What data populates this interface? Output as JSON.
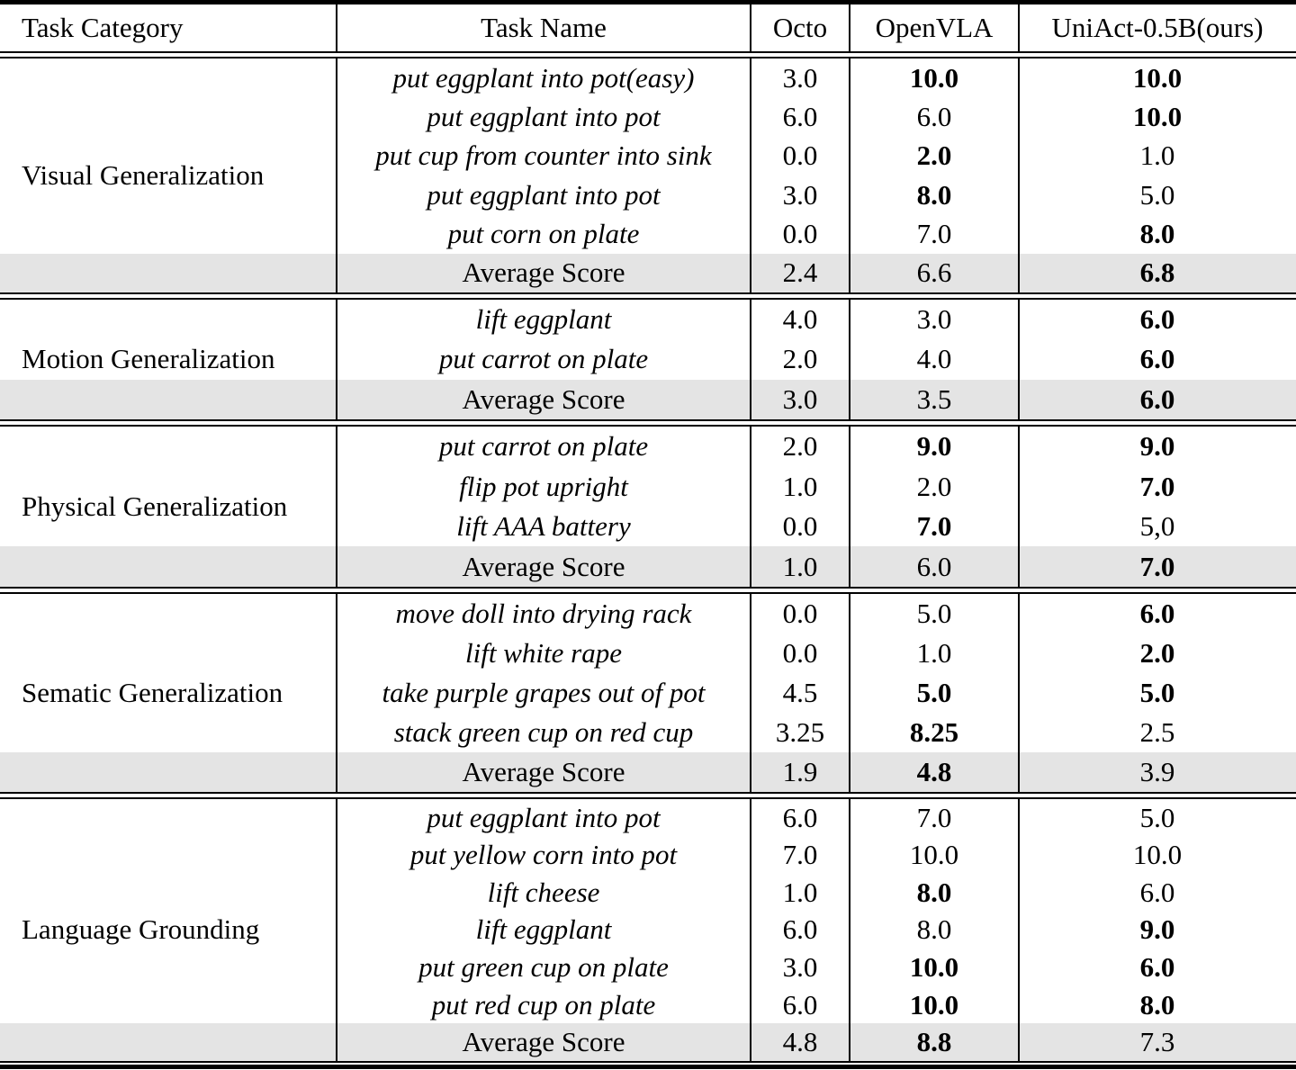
{
  "header": {
    "task_category": "Task Category",
    "task_name": "Task Name",
    "octo": "Octo",
    "openvla": "OpenVLA",
    "uniact": "UniAct-0.5B(ours)"
  },
  "average_label": "Average Score",
  "colors": {
    "average_row_bg": "#e4e4e4",
    "rule": "#000000",
    "text": "#000000",
    "background": "#ffffff"
  },
  "sections": [
    {
      "category": "Visual Generalization",
      "rows": [
        {
          "task": "put eggplant into pot(easy)",
          "octo": "3.0",
          "openvla": "10.0",
          "uniact": "10.0",
          "bold": [
            "openvla",
            "uniact"
          ]
        },
        {
          "task": "put eggplant into pot",
          "octo": "6.0",
          "openvla": "6.0",
          "uniact": "10.0",
          "bold": [
            "uniact"
          ]
        },
        {
          "task": "put cup from counter into sink",
          "octo": "0.0",
          "openvla": "2.0",
          "uniact": "1.0",
          "bold": [
            "openvla"
          ]
        },
        {
          "task": "put eggplant into pot",
          "octo": "3.0",
          "openvla": "8.0",
          "uniact": "5.0",
          "bold": [
            "openvla"
          ]
        },
        {
          "task": "put corn on plate",
          "octo": "0.0",
          "openvla": "7.0",
          "uniact": "8.0",
          "bold": [
            "uniact"
          ]
        }
      ],
      "average": {
        "octo": "2.4",
        "openvla": "6.6",
        "uniact": "6.8",
        "bold": [
          "uniact"
        ]
      }
    },
    {
      "category": "Motion Generalization",
      "rows": [
        {
          "task": "lift eggplant",
          "octo": "4.0",
          "openvla": "3.0",
          "uniact": "6.0",
          "bold": [
            "uniact"
          ]
        },
        {
          "task": "put carrot on plate",
          "octo": "2.0",
          "openvla": "4.0",
          "uniact": "6.0",
          "bold": [
            "uniact"
          ]
        }
      ],
      "average": {
        "octo": "3.0",
        "openvla": "3.5",
        "uniact": "6.0",
        "bold": [
          "uniact"
        ]
      }
    },
    {
      "category": "Physical Generalization",
      "rows": [
        {
          "task": "put carrot on plate",
          "octo": "2.0",
          "openvla": "9.0",
          "uniact": "9.0",
          "bold": [
            "openvla",
            "uniact"
          ]
        },
        {
          "task": "flip pot upright",
          "octo": "1.0",
          "openvla": "2.0",
          "uniact": "7.0",
          "bold": [
            "uniact"
          ]
        },
        {
          "task": "lift AAA battery",
          "octo": "0.0",
          "openvla": "7.0",
          "uniact": "5,0",
          "bold": [
            "openvla"
          ]
        }
      ],
      "average": {
        "octo": "1.0",
        "openvla": "6.0",
        "uniact": "7.0",
        "bold": [
          "uniact"
        ]
      }
    },
    {
      "category": "Sematic Generalization",
      "rows": [
        {
          "task": "move doll into drying rack",
          "octo": "0.0",
          "openvla": "5.0",
          "uniact": "6.0",
          "bold": [
            "uniact"
          ]
        },
        {
          "task": "lift white rape",
          "octo": "0.0",
          "openvla": "1.0",
          "uniact": "2.0",
          "bold": [
            "uniact"
          ]
        },
        {
          "task": "take purple grapes out of pot",
          "octo": "4.5",
          "openvla": "5.0",
          "uniact": "5.0",
          "bold": [
            "openvla",
            "uniact"
          ]
        },
        {
          "task": "stack green cup on red cup",
          "octo": "3.25",
          "openvla": "8.25",
          "uniact": "2.5",
          "bold": [
            "openvla"
          ]
        }
      ],
      "average": {
        "octo": "1.9",
        "openvla": "4.8",
        "uniact": "3.9",
        "bold": [
          "openvla"
        ]
      }
    },
    {
      "category": "Language Grounding",
      "rows": [
        {
          "task": "put eggplant into pot",
          "octo": "6.0",
          "openvla": "7.0",
          "uniact": "5.0",
          "bold": []
        },
        {
          "task": "put yellow corn into pot",
          "octo": "7.0",
          "openvla": "10.0",
          "uniact": "10.0",
          "bold": []
        },
        {
          "task": "lift cheese",
          "octo": "1.0",
          "openvla": "8.0",
          "uniact": "6.0",
          "bold": [
            "openvla"
          ]
        },
        {
          "task": "lift eggplant",
          "octo": "6.0",
          "openvla": "8.0",
          "uniact": "9.0",
          "bold": [
            "uniact"
          ]
        },
        {
          "task": "put green cup on plate",
          "octo": "3.0",
          "openvla": "10.0",
          "uniact": "6.0",
          "bold": [
            "openvla",
            "uniact"
          ]
        },
        {
          "task": "put red cup on plate",
          "octo": "6.0",
          "openvla": "10.0",
          "uniact": "8.0",
          "bold": [
            "openvla",
            "uniact"
          ]
        }
      ],
      "average": {
        "octo": "4.8",
        "openvla": "8.8",
        "uniact": "7.3",
        "bold": [
          "openvla"
        ]
      }
    }
  ]
}
